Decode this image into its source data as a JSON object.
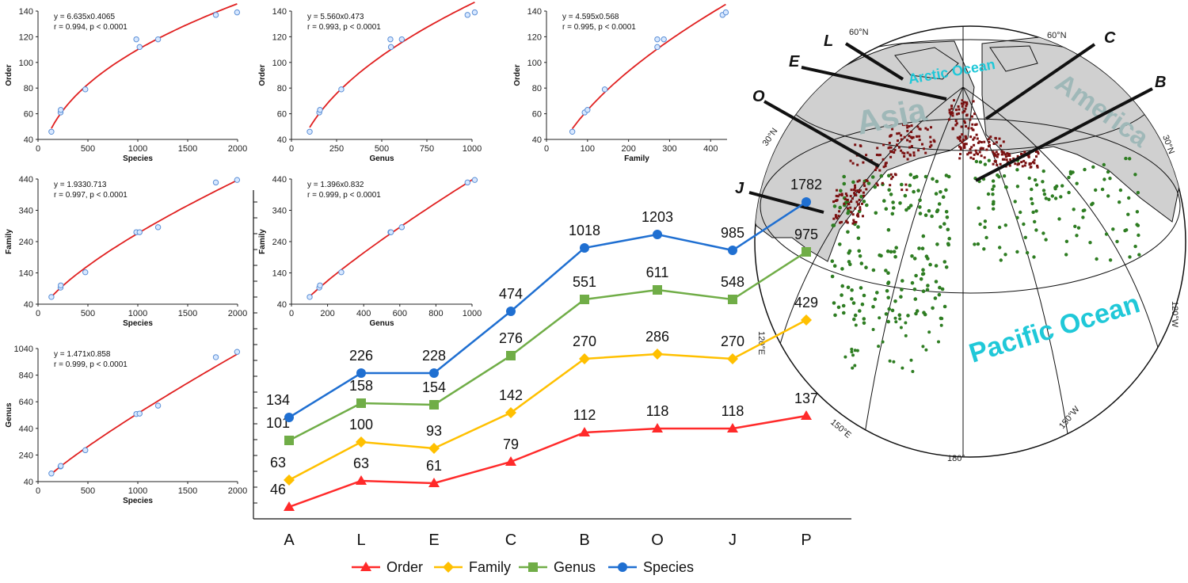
{
  "chart_data": [
    {
      "id": "order-vs-species",
      "type": "scatter",
      "xlabel": "Species",
      "ylabel": "Order",
      "xlim": [
        0,
        2000
      ],
      "ylim": [
        40,
        140
      ],
      "xticks": [
        0,
        500,
        1000,
        1500,
        2000
      ],
      "yticks": [
        40,
        60,
        80,
        100,
        120,
        140
      ],
      "x": [
        134,
        226,
        228,
        474,
        985,
        1018,
        1203,
        1782,
        1995
      ],
      "y": [
        46,
        61,
        63,
        79,
        118,
        112,
        118,
        137,
        139
      ],
      "fit": {
        "type": "power",
        "a": 6.635,
        "b": 0.4065
      },
      "annotation": [
        "y = 6.635x0.4065",
        "r = 0.994, p < 0.0001"
      ]
    },
    {
      "id": "order-vs-genus",
      "type": "scatter",
      "xlabel": "Genus",
      "ylabel": "Order",
      "xlim": [
        0,
        1000
      ],
      "ylim": [
        40,
        140
      ],
      "xticks": [
        0,
        250,
        500,
        750,
        1000
      ],
      "yticks": [
        40,
        60,
        80,
        100,
        120,
        140
      ],
      "x": [
        101,
        154,
        158,
        276,
        548,
        551,
        611,
        975,
        1015
      ],
      "y": [
        46,
        61,
        63,
        79,
        118,
        112,
        118,
        137,
        139
      ],
      "fit": {
        "type": "power",
        "a": 5.56,
        "b": 0.473
      },
      "annotation": [
        "y = 5.560x0.473",
        "r = 0.993, p < 0.0001"
      ]
    },
    {
      "id": "order-vs-family",
      "type": "scatter",
      "xlabel": "Family",
      "ylabel": "Order",
      "xlim": [
        0,
        440
      ],
      "ylim": [
        40,
        140
      ],
      "xticks": [
        0,
        100,
        200,
        300,
        400
      ],
      "yticks": [
        40,
        60,
        80,
        100,
        120,
        140
      ],
      "x": [
        63,
        93,
        100,
        142,
        270,
        270,
        286,
        429,
        437
      ],
      "y": [
        46,
        61,
        63,
        79,
        118,
        112,
        118,
        137,
        139
      ],
      "fit": {
        "type": "power",
        "a": 4.595,
        "b": 0.568
      },
      "annotation": [
        "y = 4.595x0.568",
        "r = 0.995, p < 0.0001"
      ]
    },
    {
      "id": "family-vs-species",
      "type": "scatter",
      "xlabel": "Species",
      "ylabel": "Family",
      "xlim": [
        0,
        2000
      ],
      "ylim": [
        40,
        440
      ],
      "xticks": [
        0,
        500,
        1000,
        1500,
        2000
      ],
      "yticks": [
        40,
        140,
        240,
        340,
        440
      ],
      "x": [
        134,
        226,
        228,
        474,
        985,
        1018,
        1203,
        1782,
        1995
      ],
      "y": [
        63,
        93,
        100,
        142,
        270,
        270,
        286,
        429,
        437
      ],
      "fit": {
        "type": "power",
        "a": 1.933,
        "b": 0.713
      },
      "annotation": [
        "y = 1.9330.713",
        "r = 0.997, p < 0.0001"
      ]
    },
    {
      "id": "family-vs-genus",
      "type": "scatter",
      "xlabel": "Genus",
      "ylabel": "Family",
      "xlim": [
        0,
        1000
      ],
      "ylim": [
        40,
        440
      ],
      "xticks": [
        0,
        200,
        400,
        600,
        800,
        1000
      ],
      "yticks": [
        40,
        140,
        240,
        340,
        440
      ],
      "x": [
        101,
        154,
        158,
        276,
        548,
        551,
        611,
        975,
        1015
      ],
      "y": [
        63,
        93,
        100,
        142,
        270,
        270,
        286,
        429,
        437
      ],
      "fit": {
        "type": "power",
        "a": 1.396,
        "b": 0.832
      },
      "annotation": [
        "y = 1.396x0.832",
        "r = 0.999, p < 0.0001"
      ]
    },
    {
      "id": "genus-vs-species",
      "type": "scatter",
      "xlabel": "Species",
      "ylabel": "Genus",
      "xlim": [
        0,
        2000
      ],
      "ylim": [
        40,
        1040
      ],
      "xticks": [
        0,
        500,
        1000,
        1500,
        2000
      ],
      "yticks": [
        40,
        240,
        440,
        640,
        840,
        1040
      ],
      "x": [
        134,
        226,
        228,
        474,
        985,
        1018,
        1203,
        1782,
        1995
      ],
      "y": [
        101,
        154,
        158,
        276,
        548,
        551,
        611,
        975,
        1015
      ],
      "fit": {
        "type": "power",
        "a": 1.471,
        "b": 0.858
      },
      "annotation": [
        "y = 1.471x0.858",
        "r = 0.999, p < 0.0001"
      ]
    },
    {
      "id": "richness-by-region",
      "type": "line",
      "categories": [
        "A",
        "L",
        "E",
        "C",
        "B",
        "O",
        "J",
        "P"
      ],
      "series": [
        {
          "name": "Order",
          "color": "#ff2a2a",
          "marker": "triangle",
          "values": [
            46,
            63,
            61,
            79,
            112,
            118,
            118,
            137
          ]
        },
        {
          "name": "Family",
          "color": "#ffc000",
          "marker": "diamond",
          "values": [
            63,
            100,
            93,
            142,
            270,
            286,
            270,
            429
          ]
        },
        {
          "name": "Genus",
          "color": "#70ad47",
          "marker": "square",
          "values": [
            101,
            158,
            154,
            276,
            551,
            611,
            548,
            975
          ]
        },
        {
          "name": "Species",
          "color": "#1f6fd1",
          "marker": "circle",
          "values": [
            134,
            226,
            228,
            474,
            1018,
            1203,
            985,
            1782
          ]
        }
      ]
    }
  ],
  "map": {
    "region_labels": {
      "asia": "Asia",
      "america": "America",
      "arctic_ocean": "Arctic Ocean",
      "pacific_ocean": "Pacific Ocean"
    },
    "grid_labels": [
      "60°N",
      "60°N",
      "30°N",
      "30°N",
      "120°E",
      "150°E",
      "180°",
      "150°W",
      "120°W"
    ],
    "site_labels": [
      "L",
      "C",
      "E",
      "B",
      "O",
      "J"
    ],
    "colors": {
      "land": "#d0d0d0",
      "ocean": "#ffffff",
      "coast": "#111111",
      "sites_dark": "#7a1010",
      "sites_green": "#2e7d22",
      "ocean_text": "#20c8d8",
      "land_text": "#9fb8b8"
    }
  }
}
